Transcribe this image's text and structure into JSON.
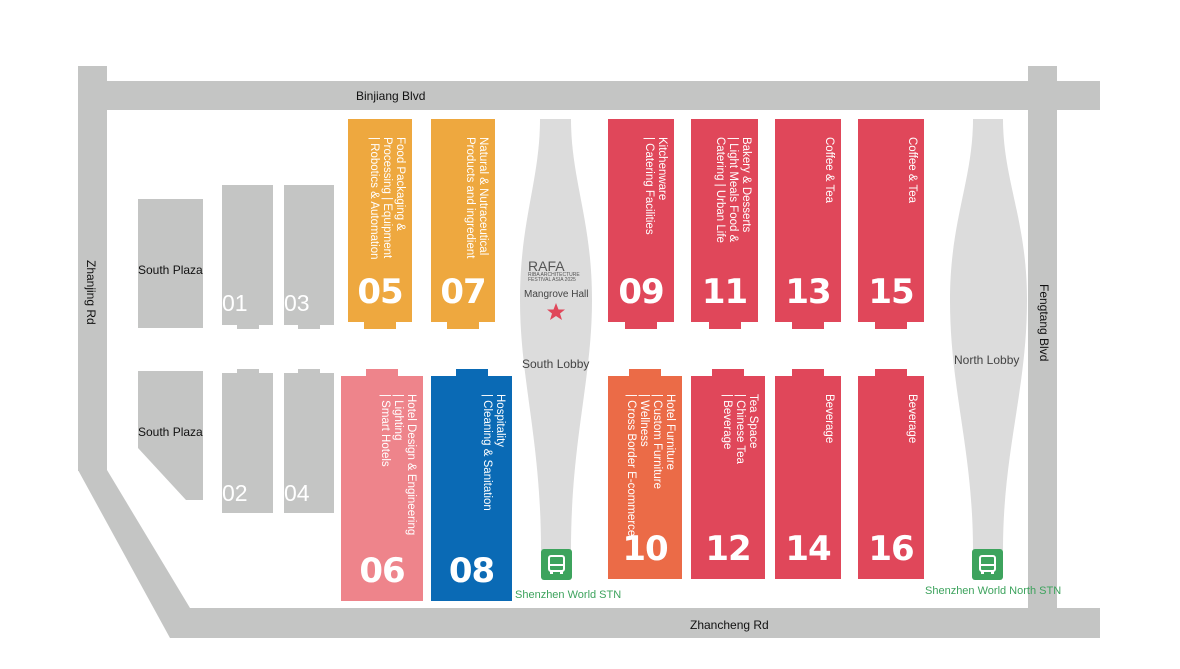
{
  "roads": {
    "north": "Binjiang Blvd",
    "west": "Zhanjing Rd",
    "east": "Fengtang Blvd",
    "south": "Zhancheng Rd"
  },
  "plazas": [
    "South Plaza",
    "South Plaza"
  ],
  "small_halls": [
    "01",
    "03",
    "02",
    "04"
  ],
  "halls": {
    "h05": {
      "num": "05",
      "lines": [
        "Food Packaging &",
        "Processing | Equipment",
        "| Robotics & Automation"
      ]
    },
    "h07": {
      "num": "07",
      "lines": [
        "Natural & Nutraceutical",
        "Products and ingredient"
      ]
    },
    "h09": {
      "num": "09",
      "lines": [
        "Kitchenware",
        "| Catering Facilities"
      ]
    },
    "h11": {
      "num": "11",
      "lines": [
        "Bakery & Desserts",
        "| Light Meals Food &",
        "Catering | Urban Life"
      ]
    },
    "h13": {
      "num": "13",
      "lines": [
        "Coffee & Tea"
      ]
    },
    "h15": {
      "num": "15",
      "lines": [
        "Coffee & Tea"
      ]
    },
    "h06": {
      "num": "06",
      "lines": [
        "Hotel Design & Engineering",
        "| Lighting",
        "| Smart Hotels"
      ]
    },
    "h08": {
      "num": "08",
      "lines": [
        "Hospitality",
        "| Cleaning & Sanitation"
      ]
    },
    "h10": {
      "num": "10",
      "lines": [
        "Hotel Furniture",
        "| Custom Furniture",
        "| Wellness",
        "| Cross Border E-commerce"
      ]
    },
    "h12": {
      "num": "12",
      "lines": [
        "Tea Space",
        "| Chinese Tea",
        "| Beverage"
      ]
    },
    "h14": {
      "num": "14",
      "lines": [
        "Beverage"
      ]
    },
    "h16": {
      "num": "16",
      "lines": [
        "Beverage"
      ]
    }
  },
  "mangrove": {
    "logo": "RAFA",
    "logo_sub1": "RIBA ARCHITECTURE",
    "logo_sub2": "FESTIVAL ASIA 2025",
    "name": "Mangrove Hall",
    "icon": "star-icon",
    "lobby": "South Lobby"
  },
  "north_lobby": "North Lobby",
  "stations": {
    "south": "Shenzhen World STN",
    "north": "Shenzhen World North STN"
  },
  "colors": {
    "orange": "#EEA83F",
    "red": "#E0475A",
    "pink": "#EE848B",
    "blue": "#0A6AB5",
    "dark_orange": "#EB6B47",
    "road": "#C4C5C4",
    "lobby": "#DCDCDC",
    "station": "#3DA35D"
  }
}
